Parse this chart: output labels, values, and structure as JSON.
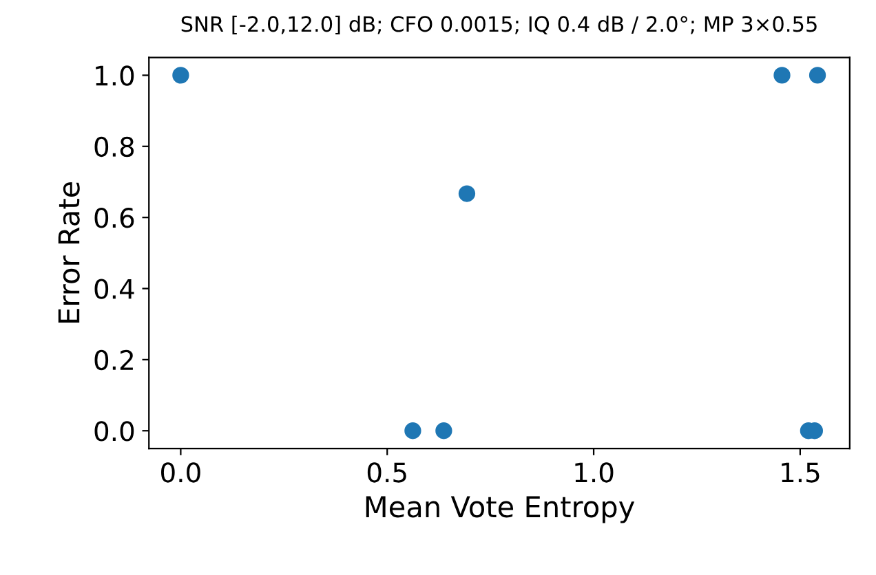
{
  "chart_data": {
    "type": "scatter",
    "xlabel": "Mean Vote Entropy",
    "ylabel": "Error Rate",
    "x": [
      0.0,
      1.456,
      1.542,
      0.693,
      0.562,
      0.637,
      1.52,
      1.535
    ],
    "values": [
      1.0,
      1.0,
      1.0,
      0.667,
      0.0,
      0.0,
      0.0,
      0.0
    ],
    "color": "#1f77b4",
    "marker": "circle",
    "xlim": [
      -0.077,
      1.62
    ],
    "ylim": [
      -0.05,
      1.05
    ],
    "xticks": [
      {
        "value": 0,
        "label": "0.0"
      },
      0.5,
      {
        "value": 1,
        "label": "1.0"
      },
      1.5
    ],
    "yticks": [
      {
        "value": 0,
        "label": "0.0"
      },
      0.2,
      0.4,
      0.6,
      0.8,
      {
        "value": 1,
        "label": "1.0"
      }
    ],
    "annotations": [
      "SNR [-2.0,12.0] dB; CFO 0.0015; IQ 0.4 dB / 2.0°; MP 3×0.55"
    ],
    "grid": false
  }
}
